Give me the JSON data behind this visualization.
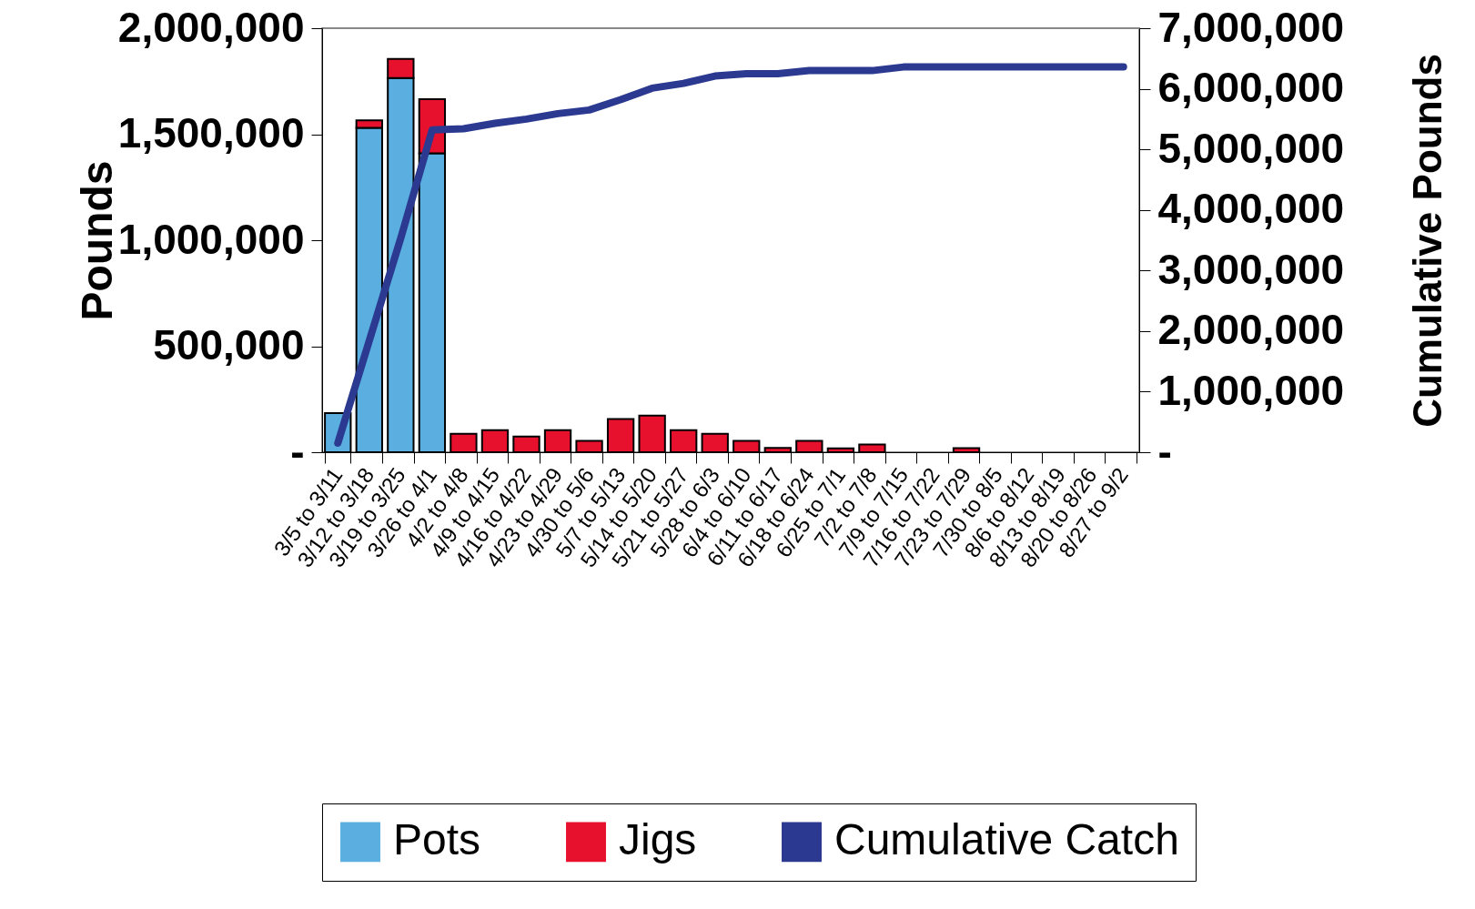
{
  "chart_data": {
    "type": "bar",
    "stacked": true,
    "ylabel": "Pounds",
    "y2label": "Cumulative Pounds",
    "legend": "bottom",
    "categories": [
      "3/5 to 3/11",
      "3/12 to 3/18",
      "3/19 to 3/25",
      "3/26 to 4/1",
      "4/2 to 4/8",
      "4/9 to 4/15",
      "4/16 to 4/22",
      "4/23 to 4/29",
      "4/30 to 5/6",
      "5/7 to 5/13",
      "5/14 to 5/20",
      "5/21 to 5/27",
      "5/28 to 6/3",
      "6/4 to 6/10",
      "6/11 to 6/17",
      "6/18 to 6/24",
      "6/25 to 7/1",
      "7/2 to 7/8",
      "7/9 to 7/15",
      "7/16 to 7/22",
      "7/23 to 7/29",
      "7/30 to 8/5",
      "8/6 to 8/12",
      "8/13 to 8/19",
      "8/20 to 8/26",
      "8/27 to 9/2"
    ],
    "ylim": [
      0,
      2000000
    ],
    "yticks": [
      {
        "value": 0,
        "label": "-"
      },
      {
        "value": 500000,
        "label": "500,000"
      },
      {
        "value": 1000000,
        "label": "1,000,000"
      },
      {
        "value": 1500000,
        "label": "1,500,000"
      },
      {
        "value": 2000000,
        "label": "2,000,000"
      }
    ],
    "y2lim": [
      0,
      7000000
    ],
    "y2ticks": [
      {
        "value": 0,
        "label": "-"
      },
      {
        "value": 1000000,
        "label": "1,000,000"
      },
      {
        "value": 2000000,
        "label": "2,000,000"
      },
      {
        "value": 3000000,
        "label": "3,000,000"
      },
      {
        "value": 4000000,
        "label": "4,000,000"
      },
      {
        "value": 5000000,
        "label": "5,000,000"
      },
      {
        "value": 6000000,
        "label": "6,000,000"
      },
      {
        "value": 7000000,
        "label": "7,000,000"
      }
    ],
    "series": [
      {
        "name": "Pots",
        "color": "#5aafe0",
        "values": [
          185000,
          1530000,
          1765000,
          1410000,
          null,
          null,
          null,
          null,
          null,
          null,
          null,
          null,
          null,
          null,
          null,
          null,
          null,
          null,
          null,
          null,
          null,
          null,
          null,
          null,
          null,
          null
        ]
      },
      {
        "name": "Jigs",
        "color": "#e8112d",
        "values": [
          null,
          35000,
          90000,
          255000,
          87000,
          104000,
          74000,
          104000,
          54000,
          157000,
          173000,
          104000,
          87000,
          54000,
          20000,
          54000,
          18000,
          36000,
          null,
          null,
          19000,
          null,
          null,
          null,
          null,
          null
        ]
      },
      {
        "name": "Cumulative Catch",
        "type": "line",
        "axis": "y2",
        "color": "#2b3990",
        "values": [
          150000,
          1840000,
          3530000,
          5320000,
          5340000,
          5430000,
          5500000,
          5590000,
          5650000,
          5820000,
          6010000,
          6090000,
          6210000,
          6250000,
          6250000,
          6300000,
          6300000,
          6300000,
          6360000,
          6360000,
          6360000,
          6360000,
          6360000,
          6360000,
          6360000,
          6360000
        ]
      }
    ]
  }
}
